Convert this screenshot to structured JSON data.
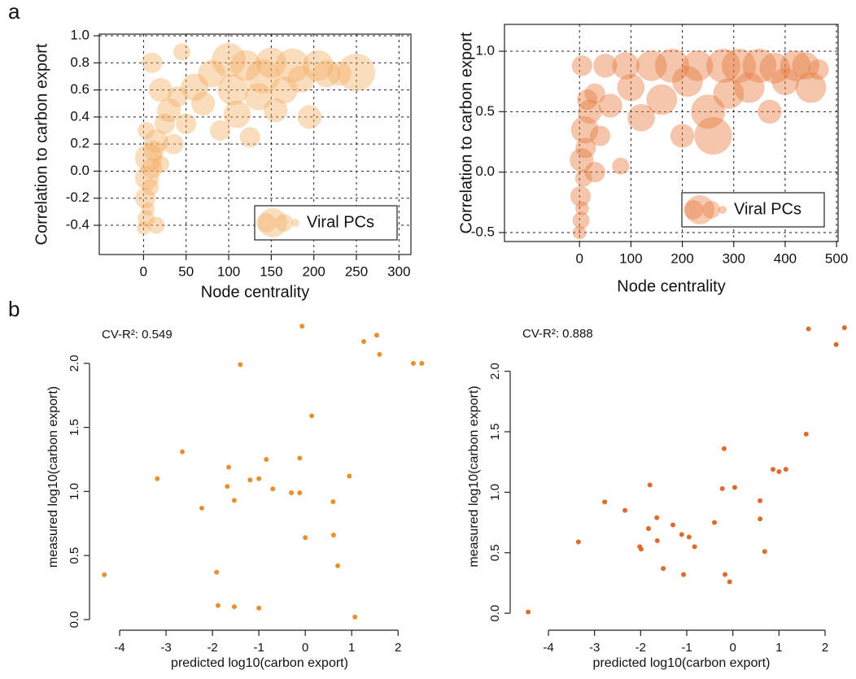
{
  "panel_labels": [
    "a",
    "b"
  ],
  "chart_data": [
    {
      "type": "bubble",
      "xlabel": "Node centrality",
      "ylabel": "Correlation to carbon export",
      "xlim": [
        -52,
        314
      ],
      "ylim": [
        -0.616,
        1.012
      ],
      "xticks": [
        0,
        50,
        100,
        150,
        200,
        250,
        300
      ],
      "yticks": [
        -0.4,
        -0.2,
        {
          "value": 0,
          "label": "0.0"
        },
        0.2,
        0.4,
        0.6,
        0.8,
        {
          "value": 1,
          "label": "1.0"
        }
      ],
      "grid": true,
      "legend": "bottom-right",
      "series": [
        {
          "name": "Viral PCs",
          "color": "#f2ad62",
          "x": [
            0,
            3,
            5,
            2,
            8,
            4,
            10,
            6,
            12,
            15,
            3,
            20,
            25,
            30,
            40,
            45,
            50,
            60,
            70,
            80,
            90,
            100,
            105,
            110,
            120,
            125,
            135,
            140,
            150,
            155,
            165,
            175,
            185,
            195,
            205,
            215,
            230,
            250,
            10,
            20,
            35,
            15
          ],
          "values": [
            -0.42,
            -0.35,
            -0.28,
            -0.2,
            -0.12,
            -0.05,
            0.02,
            0.1,
            0.15,
            0.22,
            0.3,
            0.05,
            0.35,
            0.45,
            0.55,
            0.88,
            0.35,
            0.62,
            0.5,
            0.72,
            0.3,
            0.82,
            0.6,
            0.42,
            0.78,
            0.25,
            0.55,
            0.7,
            0.8,
            0.45,
            0.6,
            0.78,
            0.68,
            0.4,
            0.78,
            0.72,
            0.72,
            0.73,
            0.8,
            0.6,
            0.2,
            -0.4
          ],
          "sizes": [
            4,
            5,
            4,
            6,
            5,
            7,
            6,
            8,
            6,
            7,
            5,
            5,
            6,
            7,
            6,
            5,
            6,
            8,
            7,
            8,
            6,
            10,
            9,
            8,
            9,
            6,
            8,
            10,
            9,
            7,
            8,
            10,
            8,
            7,
            9,
            8,
            7,
            11,
            6,
            7,
            6,
            5
          ]
        }
      ]
    },
    {
      "type": "bubble",
      "xlabel": "Node centrality",
      "ylabel": "Correlation to carbon export",
      "xlim": [
        -146,
        503
      ],
      "ylim": [
        -0.574,
        1.222
      ],
      "xticks": [
        0,
        100,
        200,
        300,
        400,
        500
      ],
      "yticks": [
        -0.5,
        {
          "value": 0,
          "label": "0.0"
        },
        0.5,
        {
          "value": 1,
          "label": "1.0"
        }
      ],
      "grid": true,
      "legend": "bottom-right",
      "series": [
        {
          "name": "Viral PCs",
          "color": "#e8773a",
          "x": [
            0,
            3,
            5,
            2,
            8,
            4,
            12,
            10,
            20,
            5,
            30,
            40,
            50,
            60,
            80,
            90,
            100,
            120,
            140,
            160,
            180,
            200,
            210,
            230,
            250,
            260,
            280,
            290,
            310,
            330,
            350,
            370,
            380,
            400,
            420,
            440,
            450,
            465,
            30,
            15
          ],
          "values": [
            -0.5,
            -0.4,
            -0.3,
            -0.2,
            -0.05,
            0.1,
            0.2,
            0.35,
            0.5,
            0.88,
            0.65,
            0.3,
            0.88,
            0.55,
            0.05,
            0.88,
            0.7,
            0.45,
            0.88,
            0.6,
            0.88,
            0.3,
            0.75,
            0.88,
            0.5,
            0.3,
            0.88,
            0.65,
            0.88,
            0.7,
            0.88,
            0.5,
            0.86,
            0.75,
            0.88,
            0.88,
            0.7,
            0.85,
            0,
            0.6
          ],
          "sizes": [
            4,
            5,
            4,
            6,
            5,
            7,
            6,
            8,
            7,
            6,
            6,
            6,
            7,
            7,
            5,
            8,
            8,
            8,
            9,
            9,
            10,
            7,
            9,
            9,
            10,
            11,
            10,
            9,
            10,
            9,
            10,
            7,
            9,
            8,
            9,
            8,
            9,
            6,
            6,
            6
          ]
        }
      ]
    },
    {
      "type": "scatter",
      "xlabel": "predicted log10(carbon export)",
      "ylabel": "measured log10(carbon export)",
      "annotation": "CV-R²: 0.549",
      "color": "#e8902e",
      "xlim": [
        -4.65,
        2.68
      ],
      "ylim": [
        -0.083,
        2.31
      ],
      "xticks": [
        -4,
        -3,
        -2,
        -1,
        0,
        1,
        2
      ],
      "yticks": [
        {
          "value": 0,
          "label": "0.0"
        },
        0.5,
        {
          "value": 1,
          "label": "1.0"
        },
        1.5,
        {
          "value": 2,
          "label": "2.0"
        }
      ],
      "x": [
        -4.33,
        -3.19,
        -2.65,
        -2.23,
        -1.91,
        -1.88,
        -1.65,
        -1.68,
        -1.53,
        -1.53,
        -1.4,
        -1.19,
        -1.0,
        -1.0,
        -0.84,
        -0.7,
        -0.3,
        -0.12,
        -0.12,
        -0.07,
        0.0,
        0.14,
        0.6,
        0.61,
        0.7,
        0.95,
        1.07,
        1.26,
        1.54,
        1.6,
        2.33,
        2.51
      ],
      "values": [
        0.35,
        1.1,
        1.31,
        0.87,
        0.37,
        0.11,
        1.19,
        1.04,
        0.93,
        0.1,
        1.99,
        1.09,
        1.1,
        0.09,
        1.25,
        1.02,
        0.99,
        1.26,
        0.99,
        2.29,
        0.64,
        1.59,
        0.92,
        0.66,
        0.42,
        1.12,
        0.02,
        2.17,
        2.22,
        2.07,
        2.0,
        2.0
      ]
    },
    {
      "type": "scatter",
      "xlabel": "predicted log10(carbon export)",
      "ylabel": "measured log10(carbon export)",
      "annotation": "CV-R²: 0.888",
      "color": "#e06a2c",
      "xlim": [
        -4.83,
        2.6
      ],
      "ylim": [
        -0.14,
        2.4
      ],
      "xticks": [
        -4,
        -3,
        -2,
        -1,
        0,
        1,
        2
      ],
      "yticks": [
        {
          "value": 0,
          "label": "0.0"
        },
        0.5,
        {
          "value": 1,
          "label": "1.0"
        },
        1.5,
        {
          "value": 2,
          "label": "2.0"
        }
      ],
      "x": [
        -4.44,
        -3.35,
        -2.78,
        -2.34,
        -2.02,
        -1.99,
        -1.8,
        -1.83,
        -1.65,
        -1.64,
        -1.51,
        -1.3,
        -1.11,
        -1.07,
        -0.95,
        -0.83,
        -0.4,
        -0.23,
        -0.17,
        -0.19,
        -0.07,
        0.04,
        0.59,
        0.59,
        0.69,
        0.87,
        1.0,
        1.15,
        1.59,
        1.64,
        2.24,
        2.42
      ],
      "values": [
        0.01,
        0.59,
        0.92,
        0.85,
        0.55,
        0.53,
        1.06,
        0.7,
        0.79,
        0.6,
        0.37,
        0.73,
        0.65,
        0.32,
        0.63,
        0.55,
        0.75,
        1.03,
        0.32,
        1.36,
        0.26,
        1.04,
        0.93,
        0.78,
        0.51,
        1.19,
        1.17,
        1.19,
        1.48,
        2.35,
        2.22,
        2.36
      ]
    }
  ]
}
